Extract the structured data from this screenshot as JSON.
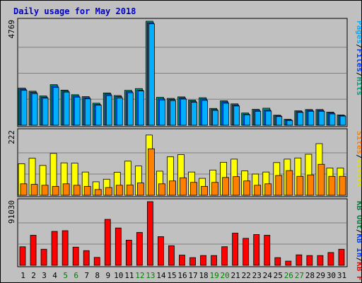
{
  "chart_data": {
    "type": "bar",
    "title": "Daily usage for May 2018",
    "categories": [
      "1",
      "2",
      "3",
      "4",
      "5",
      "6",
      "7",
      "8",
      "9",
      "10",
      "11",
      "12",
      "13",
      "14",
      "15",
      "16",
      "17",
      "18",
      "19",
      "20",
      "21",
      "22",
      "23",
      "24",
      "25",
      "26",
      "27",
      "28",
      "29",
      "30",
      "31"
    ],
    "weekend_days": [
      "5",
      "6",
      "12",
      "13",
      "19",
      "20",
      "26",
      "27"
    ],
    "colors": {
      "title": "#0000cc",
      "hits": "#00c0c0",
      "files": "#0080ff",
      "pages": "#00a0ff",
      "visits": "#ffff00",
      "sites": "#ff8000",
      "kb_in": "#0060c0",
      "kb_out": "#008040",
      "kb_f": "#ff0000",
      "weekend_label": "#008000",
      "plot_bg": "#c0c0c0",
      "frame_bg": "#c0c0c0"
    },
    "panels": [
      {
        "id": "hits",
        "ymax_label": "4769",
        "ymax": 4769,
        "legend": [
          {
            "label": "Hits",
            "color": "#00a080"
          },
          {
            "label": "Files",
            "color": "#0040ff"
          },
          {
            "label": "Pages",
            "color": "#00b0ff"
          }
        ],
        "series": [
          {
            "name": "Hits",
            "values": [
              1700,
              1560,
              1340,
              1860,
              1610,
              1400,
              1310,
              1010,
              1480,
              1360,
              1600,
              1680,
              4769,
              1280,
              1230,
              1300,
              1150,
              1260,
              770,
              1120,
              980,
              560,
              730,
              780,
              460,
              270,
              660,
              720,
              720,
              600,
              470
            ]
          },
          {
            "name": "Files",
            "values": [
              1650,
              1510,
              1290,
              1800,
              1560,
              1340,
              1260,
              950,
              1430,
              1310,
              1540,
              1610,
              4700,
              1220,
              1180,
              1250,
              1100,
              1200,
              720,
              1070,
              930,
              510,
              680,
              700,
              430,
              240,
              620,
              680,
              680,
              560,
              440
            ]
          },
          {
            "name": "Pages",
            "values": [
              1600,
              1450,
              1240,
              1730,
              1520,
              1290,
              1210,
              920,
              1360,
              1250,
              1490,
              1570,
              4650,
              1160,
              1130,
              1200,
              1050,
              1140,
              680,
              1010,
              880,
              480,
              640,
              650,
              400,
              220,
              590,
              640,
              640,
              520,
              420
            ]
          }
        ]
      },
      {
        "id": "visits",
        "ymax_label": "222",
        "ymax": 222,
        "legend": [
          {
            "label": "Visits",
            "color": "#e0e000"
          },
          {
            "label": "Sites",
            "color": "#ff8000"
          }
        ],
        "series": [
          {
            "name": "Visits",
            "values": [
              110,
              129,
              104,
              146,
              113,
              112,
              81,
              47,
              56,
              80,
              119,
              102,
              210,
              84,
              134,
              142,
              81,
              59,
              88,
              115,
              126,
              85,
              74,
              81,
              114,
              126,
              130,
              143,
              180,
              95,
              95
            ]
          },
          {
            "name": "Sites",
            "values": [
              40,
              38,
              35,
              31,
              40,
              35,
              31,
              20,
              27,
              35,
              36,
              43,
              162,
              40,
              50,
              61,
              45,
              31,
              45,
              62,
              65,
              50,
              35,
              40,
              69,
              86,
              66,
              71,
              108,
              66,
              66
            ]
          }
        ]
      },
      {
        "id": "kbytes",
        "ymax_label": "91030",
        "ymax": 91030,
        "legend": [
          {
            "label": "KB F",
            "color": "#ff0000"
          },
          {
            "label": "KB In",
            "color": "#0040ff"
          },
          {
            "label": "KB Out",
            "color": "#008040"
          }
        ],
        "series": [
          {
            "name": "KB F",
            "values": [
              26500,
              43000,
              23000,
              48500,
              49500,
              26000,
              21000,
              11300,
              65700,
              53400,
              36000,
              47000,
              91030,
              41000,
              28000,
              14600,
              11000,
              14000,
              14000,
              26600,
              46000,
              38600,
              44000,
              43000,
              11000,
              6000,
              15000,
              14000,
              14000,
              18300,
              23000
            ]
          }
        ]
      }
    ]
  }
}
